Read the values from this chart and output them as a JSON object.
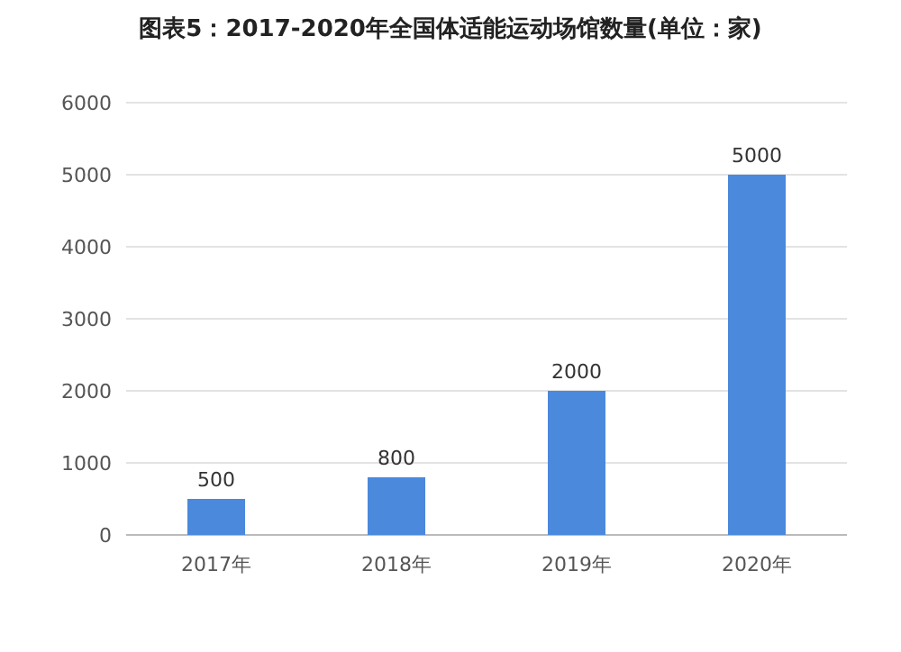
{
  "chart_data": {
    "type": "bar",
    "title": "图表5：2017-2020年全国体适能运动场馆数量(单位：家)",
    "categories": [
      "2017年",
      "2018年",
      "2019年",
      "2020年"
    ],
    "values": [
      500,
      800,
      2000,
      5000
    ],
    "color": "#4a89dc",
    "ylim": [
      0,
      6000
    ],
    "yticks": [
      0,
      1000,
      2000,
      3000,
      4000,
      5000,
      6000
    ],
    "grid": "y",
    "data_labels": true
  }
}
